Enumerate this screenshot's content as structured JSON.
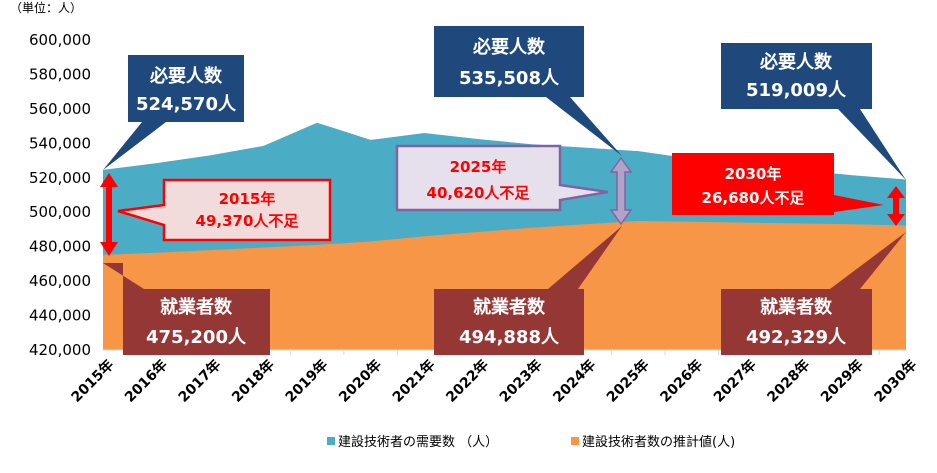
{
  "chart_data": {
    "type": "area",
    "unit_label": "（単位：人）",
    "categories": [
      "2015年",
      "2016年",
      "2017年",
      "2018年",
      "2019年",
      "2020年",
      "2021年",
      "2022年",
      "2023年",
      "2024年",
      "2025年",
      "2026年",
      "2027年",
      "2028年",
      "2029年",
      "2030年"
    ],
    "ylim": [
      420000,
      600000
    ],
    "yticks": [
      "420,000",
      "440,000",
      "460,000",
      "480,000",
      "500,000",
      "520,000",
      "540,000",
      "560,000",
      "580,000",
      "600,000"
    ],
    "grid": false,
    "legend_position": "bottom",
    "series": [
      {
        "name": "建設技術者の需要数 （人）",
        "color": "#4bacc6",
        "values": [
          524570,
          528500,
          533000,
          538500,
          552000,
          542000,
          546000,
          542500,
          539500,
          537500,
          535508,
          531000,
          527500,
          524500,
          521500,
          519009
        ]
      },
      {
        "name": "建設技術者数の推計値(人)",
        "color": "#f79646",
        "values": [
          475200,
          476500,
          478000,
          479500,
          481000,
          483000,
          486000,
          488500,
          491000,
          493000,
          494888,
          494500,
          494000,
          493500,
          493000,
          492329
        ]
      }
    ],
    "annotations": {
      "demand": [
        {
          "label": "必要人数",
          "value": "524,570人"
        },
        {
          "label": "必要人数",
          "value": "535,508人"
        },
        {
          "label": "必要人数",
          "value": "519,009人"
        }
      ],
      "workers": [
        {
          "label": "就業者数",
          "value": "475,200人"
        },
        {
          "label": "就業者数",
          "value": "494,888人"
        },
        {
          "label": "就業者数",
          "value": "492,329人"
        }
      ],
      "shortage": [
        {
          "year": "2015年",
          "value": "49,370人不足"
        },
        {
          "year": "2025年",
          "value": "40,620人不足"
        },
        {
          "year": "2030年",
          "value": "26,680人不足"
        }
      ]
    },
    "colors": {
      "demand_box": "#1f497d",
      "workers_box": "#953735",
      "shortage_2015_border": "#ff0000",
      "shortage_2015_fill": "#f2dcdb",
      "shortage_2025_border": "#8064a2",
      "shortage_2025_fill": "#e6e0ec",
      "shortage_2030_fill": "#ff0000",
      "arrow_red": "#ff0000",
      "arrow_purple": "#b3a2c7"
    }
  }
}
